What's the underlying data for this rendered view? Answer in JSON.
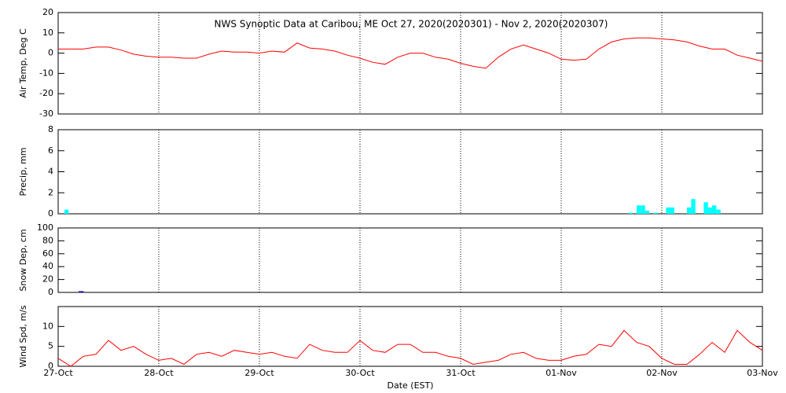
{
  "chart_data": [
    {
      "type": "line",
      "title": "NWS Synoptic Data at Caribou, ME   Oct 27, 2020(2020301) - Nov  2, 2020(2020307)",
      "ylabel": "Air Temp, Deg C",
      "color": "#ff0000",
      "x": [
        0,
        0.125,
        0.25,
        0.375,
        0.5,
        0.625,
        0.75,
        0.875,
        1,
        1.125,
        1.25,
        1.375,
        1.5,
        1.625,
        1.75,
        1.875,
        2,
        2.125,
        2.25,
        2.375,
        2.5,
        2.625,
        2.75,
        2.875,
        3,
        3.125,
        3.25,
        3.375,
        3.5,
        3.625,
        3.75,
        3.875,
        4,
        4.125,
        4.25,
        4.375,
        4.5,
        4.625,
        4.75,
        4.875,
        5,
        5.125,
        5.25,
        5.375,
        5.5,
        5.625,
        5.75,
        5.875,
        6,
        6.125,
        6.25,
        6.375,
        6.5,
        6.625,
        6.75,
        6.875,
        7
      ],
      "values": [
        2,
        2,
        2,
        3,
        3,
        1.5,
        -0.5,
        -1.5,
        -2,
        -2,
        -2.5,
        -2.5,
        -0.5,
        1,
        0.5,
        0.5,
        0,
        1,
        0.5,
        5,
        2.5,
        2,
        1,
        -1,
        -2.5,
        -4.5,
        -5.5,
        -2,
        0,
        0,
        -2,
        -3,
        -5,
        -6.5,
        -7.5,
        -2,
        2,
        4,
        2,
        0,
        -3,
        -3.5,
        -3,
        2,
        5.5,
        7,
        7.5,
        7.5,
        7,
        6.5,
        5.5,
        3.5,
        2,
        2,
        -1,
        -2.5,
        -4
      ],
      "xlim": [
        0,
        7
      ],
      "xticks": [
        0,
        1,
        2,
        3,
        4,
        5,
        6,
        7
      ],
      "ylim": [
        -30,
        20
      ],
      "yticks": [
        -30,
        -20,
        -10,
        0,
        10,
        20
      ],
      "grid": true
    },
    {
      "type": "bar",
      "ylabel": "Precip, mm",
      "color": "#00ffff",
      "x": [
        0.0625,
        5.667,
        5.75,
        5.792,
        5.833,
        5.917,
        6.042,
        6.083,
        6.25,
        6.292,
        6.417,
        6.458,
        6.5,
        6.542
      ],
      "values": [
        0.4,
        0.1,
        0.8,
        0.8,
        0.3,
        0.1,
        0.6,
        0.6,
        0.6,
        1.4,
        1.1,
        0.6,
        0.8,
        0.4
      ],
      "xlim": [
        0,
        7
      ],
      "xticks": [
        0,
        1,
        2,
        3,
        4,
        5,
        6,
        7
      ],
      "ylim": [
        0,
        8
      ],
      "yticks": [
        0,
        2,
        4,
        6,
        8
      ],
      "grid": true
    },
    {
      "type": "bar",
      "ylabel": "Snow Dep, cm",
      "color": "#00008b",
      "fill": false,
      "x": [
        0.208
      ],
      "values": [
        1
      ],
      "xlim": [
        0,
        7
      ],
      "xticks": [
        0,
        1,
        2,
        3,
        4,
        5,
        6,
        7
      ],
      "ylim": [
        0,
        100
      ],
      "yticks": [
        0,
        20,
        40,
        60,
        80,
        100
      ],
      "grid": true
    },
    {
      "type": "line",
      "ylabel": "Wind Spd, m/s",
      "xlabel": "Date (EST)",
      "color": "#ff0000",
      "x": [
        0,
        0.125,
        0.25,
        0.375,
        0.5,
        0.625,
        0.75,
        0.875,
        1,
        1.125,
        1.25,
        1.375,
        1.5,
        1.625,
        1.75,
        1.875,
        2,
        2.125,
        2.25,
        2.375,
        2.5,
        2.625,
        2.75,
        2.875,
        3,
        3.125,
        3.25,
        3.375,
        3.5,
        3.625,
        3.75,
        3.875,
        4,
        4.125,
        4.25,
        4.375,
        4.5,
        4.625,
        4.75,
        4.875,
        5,
        5.125,
        5.25,
        5.375,
        5.5,
        5.625,
        5.75,
        5.875,
        6,
        6.125,
        6.25,
        6.375,
        6.5,
        6.625,
        6.75,
        6.875,
        7
      ],
      "values": [
        2,
        0,
        2.5,
        3,
        6.5,
        4,
        5,
        3,
        1.5,
        2,
        0.5,
        3,
        3.5,
        2.5,
        4,
        3.5,
        3,
        3.5,
        2.5,
        2,
        5.5,
        4,
        3.5,
        3.5,
        6.5,
        4,
        3.5,
        5.5,
        5.5,
        3.5,
        3.5,
        2.5,
        2,
        0.5,
        1,
        1.5,
        3,
        3.5,
        2,
        1.5,
        1.5,
        2.5,
        3,
        5.5,
        5,
        9,
        6,
        5,
        2,
        0.5,
        0.5,
        3,
        6,
        3.5,
        9,
        6,
        4
      ],
      "xlim": [
        0,
        7
      ],
      "xticks": [
        {
          "value": 0,
          "label": "27-Oct"
        },
        {
          "value": 1,
          "label": "28-Oct"
        },
        {
          "value": 2,
          "label": "29-Oct"
        },
        {
          "value": 3,
          "label": "30-Oct"
        },
        {
          "value": 4,
          "label": "31-Oct"
        },
        {
          "value": 5,
          "label": "01-Nov"
        },
        {
          "value": 6,
          "label": "02-Nov"
        },
        {
          "value": 7,
          "label": "03-Nov"
        }
      ],
      "ylim": [
        0,
        15
      ],
      "yticks": [
        0,
        5,
        10
      ],
      "grid": true
    }
  ]
}
